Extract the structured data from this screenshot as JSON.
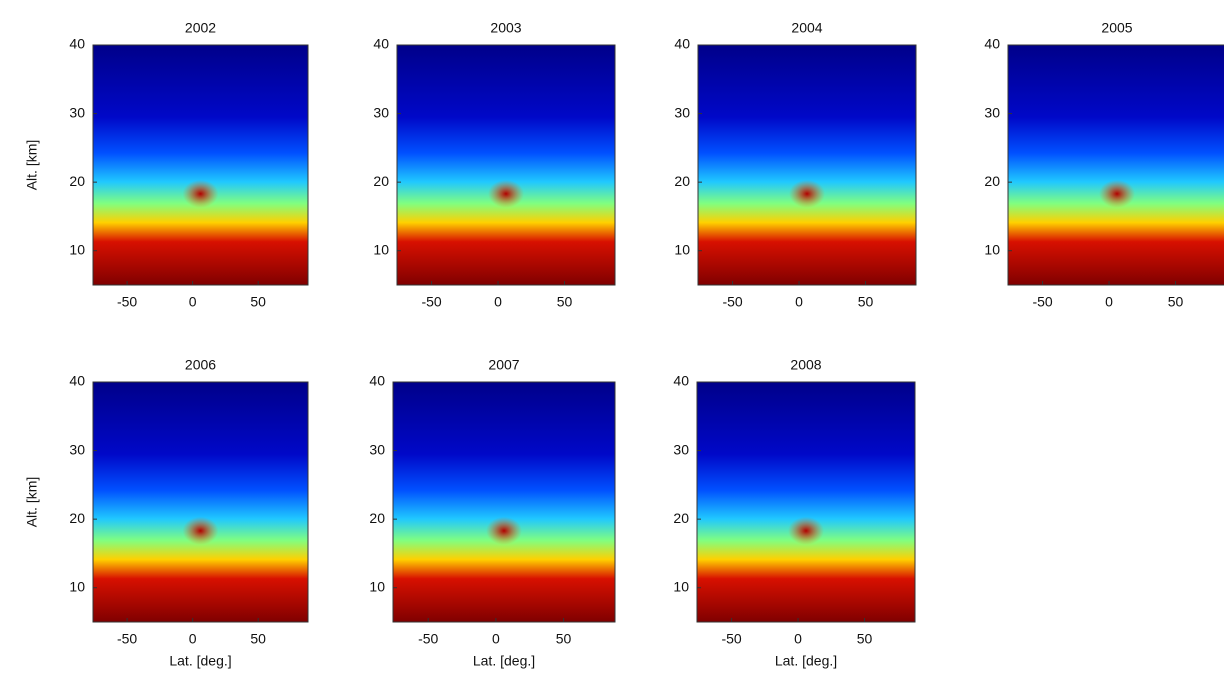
{
  "chart_data": [
    {
      "type": "heatmap",
      "title": "2002",
      "ylabel": "Alt. [km]",
      "xlim": [
        -76,
        88
      ],
      "ylim": [
        5,
        40
      ],
      "xticks": [
        -50,
        0,
        50
      ],
      "yticks": [
        10,
        20,
        30,
        40
      ]
    },
    {
      "type": "heatmap",
      "title": "2003",
      "xlim": [
        -76,
        88
      ],
      "ylim": [
        5,
        40
      ],
      "xticks": [
        -50,
        0,
        50
      ],
      "yticks": [
        10,
        20,
        30,
        40
      ]
    },
    {
      "type": "heatmap",
      "title": "2004",
      "xlim": [
        -76,
        88
      ],
      "ylim": [
        5,
        40
      ],
      "xticks": [
        -50,
        0,
        50
      ],
      "yticks": [
        10,
        20,
        30,
        40
      ]
    },
    {
      "type": "heatmap",
      "title": "2005",
      "xlim": [
        -76,
        88
      ],
      "ylim": [
        5,
        40
      ],
      "xticks": [
        -50,
        0,
        50
      ],
      "yticks": [
        10,
        20,
        30,
        40
      ]
    },
    {
      "type": "heatmap",
      "title": "2006",
      "ylabel": "Alt. [km]",
      "xlabel": "Lat. [deg.]",
      "xlim": [
        -76,
        88
      ],
      "ylim": [
        5,
        40
      ],
      "xticks": [
        -50,
        0,
        50
      ],
      "yticks": [
        10,
        20,
        30,
        40
      ]
    },
    {
      "type": "heatmap",
      "title": "2007",
      "xlabel": "Lat. [deg.]",
      "xlim": [
        -76,
        88
      ],
      "ylim": [
        5,
        40
      ],
      "xticks": [
        -50,
        0,
        50
      ],
      "yticks": [
        10,
        20,
        30,
        40
      ]
    },
    {
      "type": "heatmap",
      "title": "2008",
      "xlabel": "Lat. [deg.]",
      "xlim": [
        -76,
        88
      ],
      "ylim": [
        5,
        40
      ],
      "xticks": [
        -50,
        0,
        50
      ],
      "yticks": [
        10,
        20,
        30,
        40
      ]
    }
  ]
}
